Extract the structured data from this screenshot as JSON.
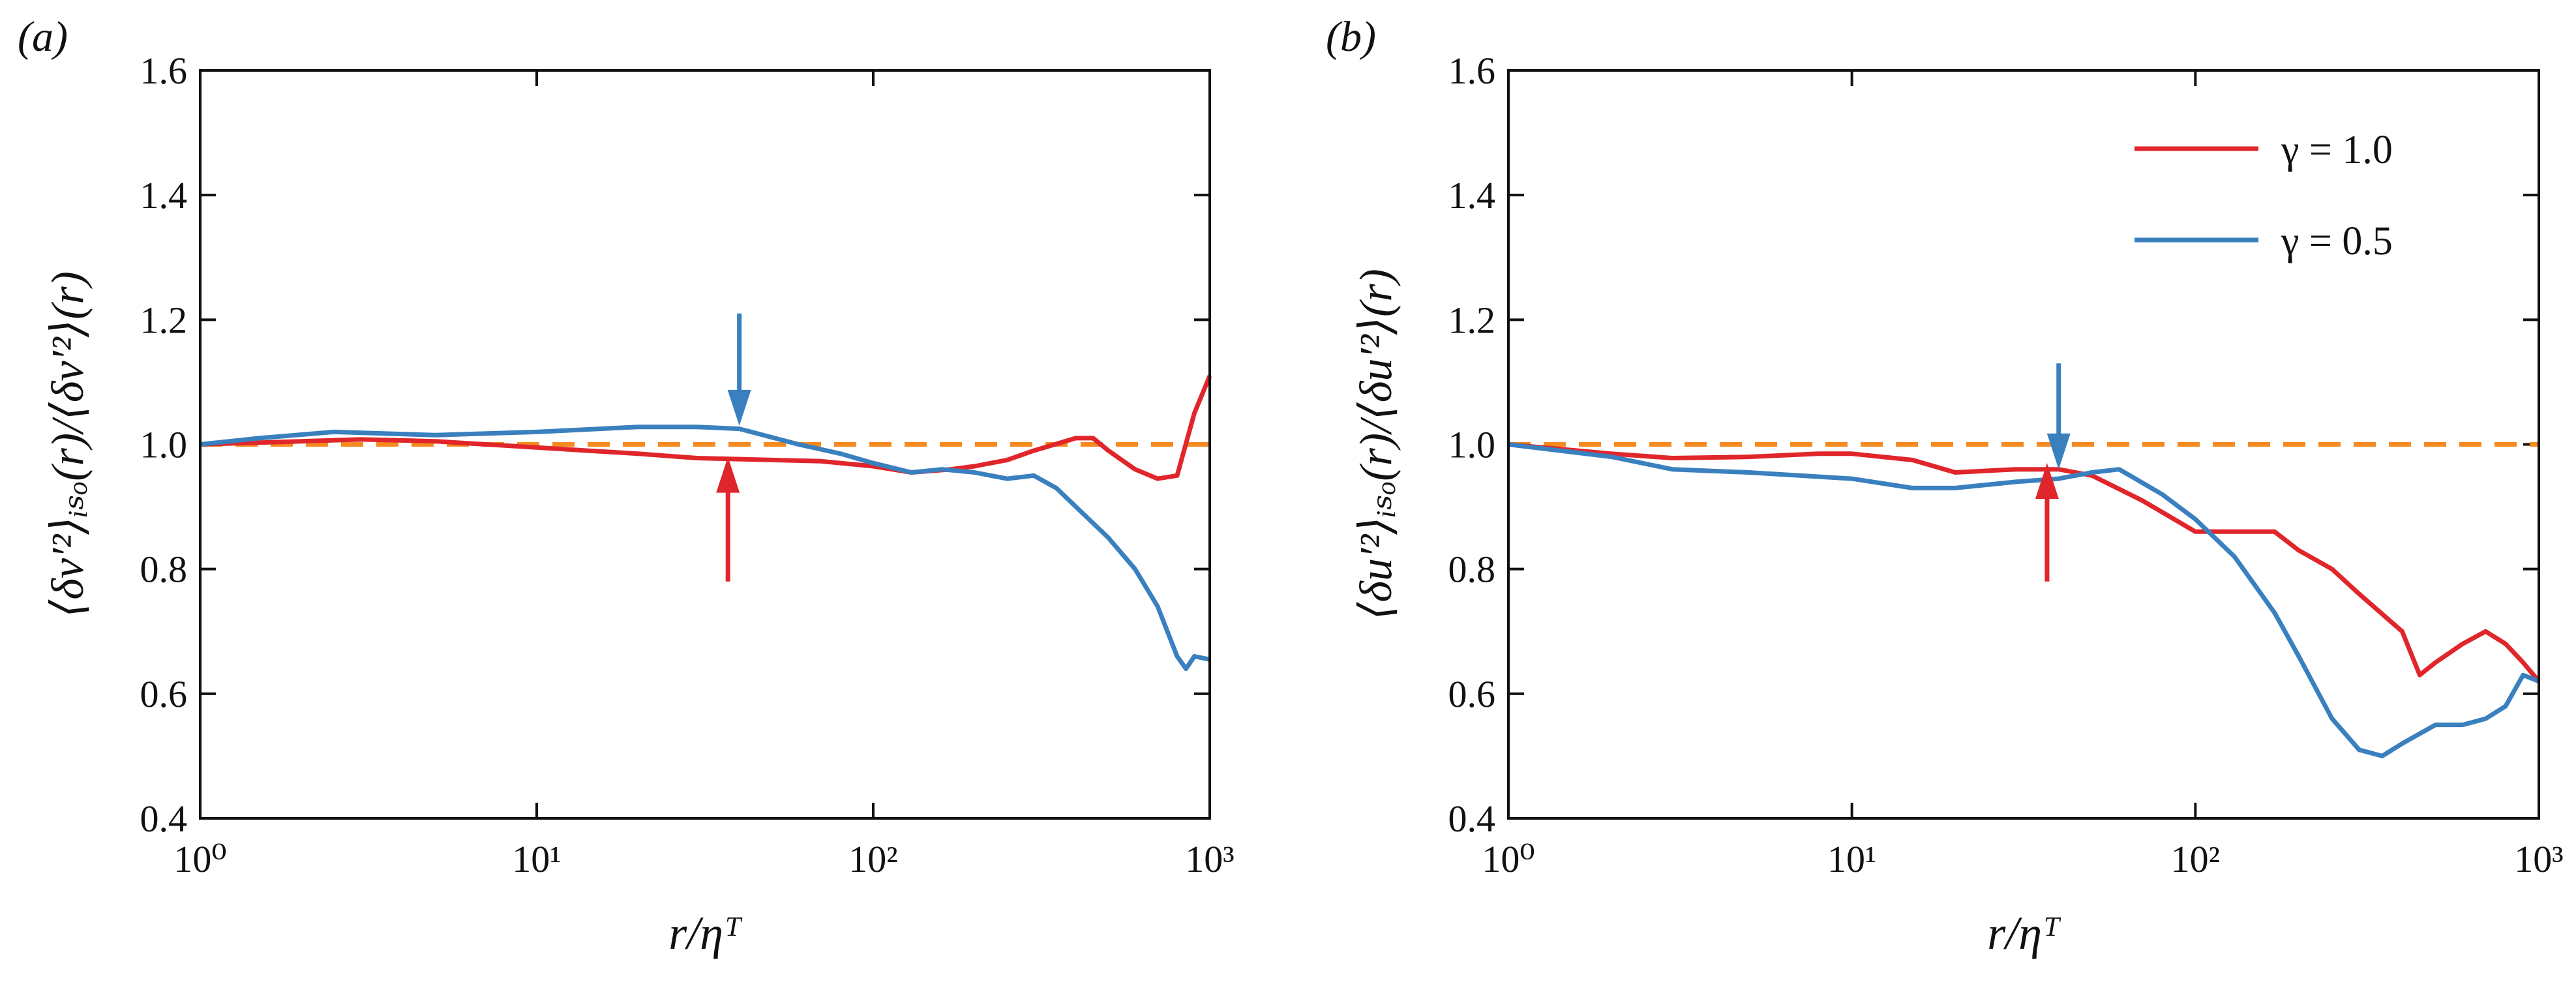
{
  "chart_data": [
    {
      "type": "line",
      "panel_label": "(a)",
      "x_label": "r/ηᵀ",
      "y_label": "⟨δv′²⟩ᵢₛₒ(r)/⟨δv′²⟩(r)",
      "xscale": "log",
      "xlim": [
        1,
        1000
      ],
      "xticks": [
        {
          "value": 1,
          "label": "10⁰"
        },
        {
          "value": 10,
          "label": "10¹"
        },
        {
          "value": 100,
          "label": "10²"
        },
        {
          "value": 1000,
          "label": "10³"
        }
      ],
      "ylim": [
        0.4,
        1.6
      ],
      "yticks": [
        0.4,
        0.6,
        0.8,
        {
          "value": 1.0,
          "label": "1.0"
        },
        1.2,
        1.4,
        1.6
      ],
      "reference": {
        "value": 1,
        "color": "#f58a1f"
      },
      "series": [
        {
          "color": "#e0262b",
          "x": [
            1,
            2,
            3,
            5,
            10,
            20,
            30,
            50,
            70,
            100,
            130,
            170,
            200,
            250,
            300,
            400,
            450,
            500,
            600,
            700,
            800,
            900,
            1000
          ],
          "values": [
            1.0,
            1.005,
            1.008,
            1.005,
            0.995,
            0.985,
            0.978,
            0.975,
            0.973,
            0.965,
            0.955,
            0.96,
            0.965,
            0.975,
            0.99,
            1.01,
            1.01,
            0.99,
            0.96,
            0.945,
            0.95,
            1.05,
            1.11
          ]
        },
        {
          "color": "#3a80bf",
          "x": [
            1,
            1.5,
            2.5,
            5,
            10,
            20,
            30,
            40,
            60,
            80,
            100,
            130,
            160,
            200,
            250,
            300,
            350,
            400,
            500,
            600,
            700,
            800,
            850,
            900,
            1000
          ],
          "values": [
            1.0,
            1.01,
            1.02,
            1.015,
            1.02,
            1.028,
            1.028,
            1.025,
            1.0,
            0.985,
            0.97,
            0.955,
            0.96,
            0.955,
            0.945,
            0.95,
            0.93,
            0.9,
            0.85,
            0.8,
            0.74,
            0.66,
            0.64,
            0.66,
            0.655
          ]
        }
      ],
      "arrows": [
        {
          "x": 40,
          "y_from": 1.21,
          "y_to": 1.03,
          "color": "#3a80bf"
        },
        {
          "x": 37,
          "y_from": 0.78,
          "y_to": 0.98,
          "color": "#e0262b"
        }
      ]
    },
    {
      "type": "line",
      "panel_label": "(b)",
      "x_label": "r/ηᵀ",
      "y_label": "⟨δu′²⟩ᵢₛₒ(r)/⟨δu′²⟩(r)",
      "xscale": "log",
      "xlim": [
        1,
        1000
      ],
      "xticks": [
        {
          "value": 1,
          "label": "10⁰"
        },
        {
          "value": 10,
          "label": "10¹"
        },
        {
          "value": 100,
          "label": "10²"
        },
        {
          "value": 1000,
          "label": "10³"
        }
      ],
      "ylim": [
        0.4,
        1.6
      ],
      "yticks": [
        0.4,
        0.6,
        0.8,
        {
          "value": 1.0,
          "label": "1.0"
        },
        1.2,
        1.4,
        1.6
      ],
      "reference": {
        "value": 1,
        "color": "#f58a1f"
      },
      "legend": "upper right",
      "series": [
        {
          "name": "γ = 1.0",
          "color": "#e0262b",
          "x": [
            1,
            2,
            3,
            5,
            8,
            10,
            15,
            20,
            30,
            40,
            50,
            70,
            100,
            130,
            170,
            200,
            250,
            300,
            400,
            450,
            500,
            600,
            700,
            800,
            900,
            1000
          ],
          "values": [
            1.0,
            0.985,
            0.978,
            0.98,
            0.985,
            0.985,
            0.975,
            0.955,
            0.96,
            0.96,
            0.95,
            0.91,
            0.86,
            0.86,
            0.86,
            0.83,
            0.8,
            0.76,
            0.7,
            0.63,
            0.65,
            0.68,
            0.7,
            0.68,
            0.65,
            0.62
          ]
        },
        {
          "name": "γ = 0.5",
          "color": "#3a80bf",
          "x": [
            1,
            2,
            3,
            5,
            10,
            15,
            20,
            30,
            40,
            50,
            60,
            80,
            100,
            130,
            170,
            200,
            250,
            300,
            350,
            400,
            500,
            600,
            700,
            800,
            900,
            1000
          ],
          "values": [
            1.0,
            0.98,
            0.96,
            0.955,
            0.945,
            0.93,
            0.93,
            0.94,
            0.945,
            0.955,
            0.96,
            0.92,
            0.88,
            0.82,
            0.73,
            0.66,
            0.56,
            0.51,
            0.5,
            0.52,
            0.55,
            0.55,
            0.56,
            0.58,
            0.63,
            0.62
          ]
        }
      ],
      "arrows": [
        {
          "x": 40,
          "y_from": 1.13,
          "y_to": 0.96,
          "color": "#3a80bf"
        },
        {
          "x": 37,
          "y_from": 0.78,
          "y_to": 0.97,
          "color": "#e0262b"
        }
      ]
    }
  ]
}
